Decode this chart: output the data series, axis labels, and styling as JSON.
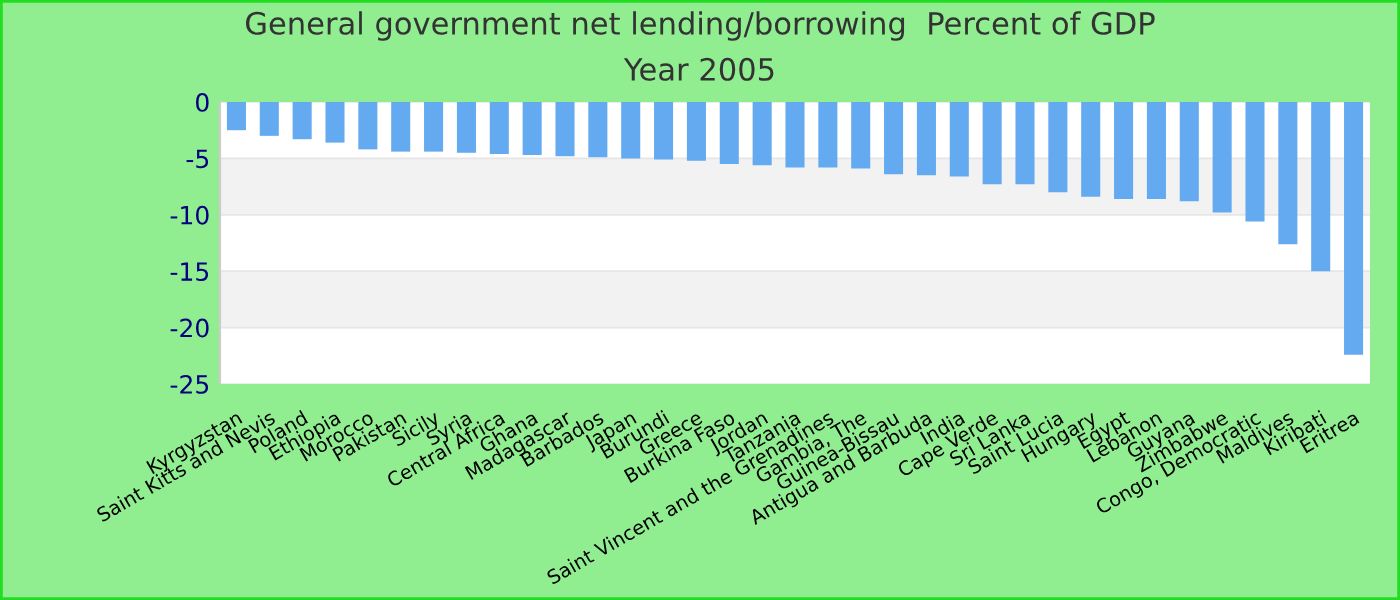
{
  "chart_data": {
    "type": "bar",
    "title": "General government net lending/borrowing  Percent of GDP",
    "subtitle": "Year 2005",
    "categories": [
      "Kyrgyzstan",
      "Saint Kitts and Nevis",
      "Poland",
      "Ethiopia",
      "Morocco",
      "Pakistan",
      "Sicily",
      "Syria",
      "Central Africa",
      "Ghana",
      "Madagascar",
      "Barbados",
      "Japan",
      "Burundi",
      "Greece",
      "Burkina Faso",
      "Jordan",
      "Tanzania",
      "Saint Vincent and the Grenadines",
      "Gambia, The",
      "Guinea-Bissau",
      "Antigua and Barbuda",
      "India",
      "Cape Verde",
      "Sri Lanka",
      "Saint Lucia",
      "Hungary",
      "Egypt",
      "Lebanon",
      "Guyana",
      "Zimbabwe",
      "Congo, Democratic",
      "Maldives",
      "Kiribati",
      "Eritrea"
    ],
    "values": [
      -2.5,
      -3.0,
      -3.3,
      -3.6,
      -4.2,
      -4.4,
      -4.4,
      -4.5,
      -4.6,
      -4.7,
      -4.8,
      -4.9,
      -5.0,
      -5.1,
      -5.2,
      -5.5,
      -5.6,
      -5.8,
      -5.8,
      -5.9,
      -6.4,
      -6.5,
      -6.6,
      -7.3,
      -7.3,
      -8.0,
      -8.4,
      -8.6,
      -8.6,
      -8.8,
      -9.8,
      -10.6,
      -12.6,
      -15.0,
      -22.4
    ],
    "color": "#64aaf0",
    "ylim": [
      -25,
      0
    ],
    "yticks": [
      -25,
      -20,
      -15,
      -10,
      -5,
      0
    ],
    "grid": "y"
  }
}
